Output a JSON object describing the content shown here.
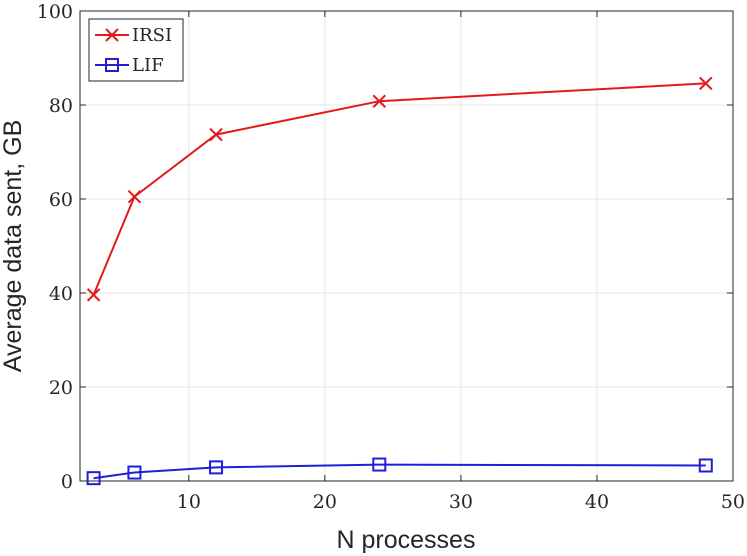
{
  "chart_data": {
    "type": "line",
    "title": "",
    "xlabel": "N processes",
    "ylabel": "Average data sent, GB",
    "xlim": [
      2,
      50
    ],
    "ylim": [
      0,
      100
    ],
    "xticks": [
      10,
      20,
      30,
      40,
      50
    ],
    "yticks": [
      0,
      20,
      40,
      60,
      80,
      100
    ],
    "grid": true,
    "legend_position": "top-left",
    "x": [
      3,
      6,
      12,
      24,
      48
    ],
    "series": [
      {
        "name": "IRSI",
        "color": "#e31a1c",
        "marker": "x",
        "values": [
          39.6,
          60.5,
          73.7,
          80.8,
          84.6
        ]
      },
      {
        "name": "LIF",
        "color": "#1f1fd9",
        "marker": "square",
        "values": [
          0.6,
          1.8,
          2.9,
          3.5,
          3.3
        ]
      }
    ]
  }
}
